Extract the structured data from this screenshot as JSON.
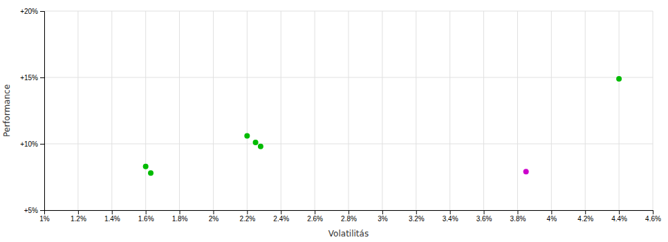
{
  "chart_data": {
    "type": "scatter",
    "xlabel": "Volatilitás",
    "ylabel": "Performance",
    "xlim": [
      0.01,
      0.046
    ],
    "ylim": [
      0.05,
      0.2
    ],
    "xticks": [
      {
        "value": 0.01,
        "label": "1%"
      },
      {
        "value": 0.012,
        "label": "1.2%"
      },
      {
        "value": 0.014,
        "label": "1.4%"
      },
      {
        "value": 0.016,
        "label": "1.6%"
      },
      {
        "value": 0.018,
        "label": "1.8%"
      },
      {
        "value": 0.02,
        "label": "2%"
      },
      {
        "value": 0.022,
        "label": "2.2%"
      },
      {
        "value": 0.024,
        "label": "2.4%"
      },
      {
        "value": 0.026,
        "label": "2.6%"
      },
      {
        "value": 0.028,
        "label": "2.8%"
      },
      {
        "value": 0.03,
        "label": "3%"
      },
      {
        "value": 0.032,
        "label": "3.2%"
      },
      {
        "value": 0.034,
        "label": "3.4%"
      },
      {
        "value": 0.036,
        "label": "3.6%"
      },
      {
        "value": 0.038,
        "label": "3.8%"
      },
      {
        "value": 0.04,
        "label": "4%"
      },
      {
        "value": 0.042,
        "label": "4.2%"
      },
      {
        "value": 0.044,
        "label": "4.4%"
      },
      {
        "value": 0.046,
        "label": "4.6%"
      }
    ],
    "yticks": [
      {
        "value": 0.05,
        "label": "+5%"
      },
      {
        "value": 0.1,
        "label": "+10%"
      },
      {
        "value": 0.15,
        "label": "+15%"
      },
      {
        "value": 0.2,
        "label": "+20%"
      }
    ],
    "grid": true,
    "series": [
      {
        "color": "#00bb00",
        "x": [
          0.016,
          0.0163,
          0.022,
          0.0225,
          0.0228,
          0.044
        ],
        "values": [
          0.083,
          0.078,
          0.106,
          0.101,
          0.098,
          0.149
        ]
      },
      {
        "color": "#cc00cc",
        "x": [
          0.0385
        ],
        "values": [
          0.079
        ]
      }
    ]
  }
}
